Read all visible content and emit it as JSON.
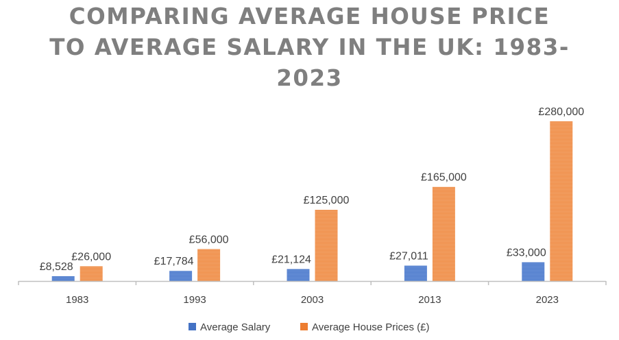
{
  "chart_data": {
    "type": "bar",
    "title": "COMPARING AVERAGE HOUSE PRICE TO AVERAGE SALARY IN THE UK: 1983-2023",
    "title_lines": [
      "COMPARING AVERAGE HOUSE PRICE",
      "TO AVERAGE SALARY IN THE UK: 1983-",
      "2023"
    ],
    "categories": [
      "1983",
      "1993",
      "2003",
      "2013",
      "2023"
    ],
    "series": [
      {
        "name": "Average Salary",
        "color": "#4472c4",
        "values": [
          8528,
          17784,
          21124,
          27011,
          33000
        ],
        "labels": [
          "£8,528",
          "£17,784",
          "£21,124",
          "£27,011",
          "£33,000"
        ]
      },
      {
        "name": "Average House Prices (£)",
        "color": "#ed7d31",
        "values": [
          26000,
          56000,
          125000,
          165000,
          280000
        ],
        "labels": [
          "£26,000",
          "£56,000",
          "£125,000",
          "£165,000",
          "£280,000"
        ]
      }
    ],
    "xlabel": "",
    "ylabel": "",
    "ylim": [
      0,
      280000
    ],
    "y_axis_visible": false,
    "grid": false,
    "legend_position": "bottom"
  }
}
